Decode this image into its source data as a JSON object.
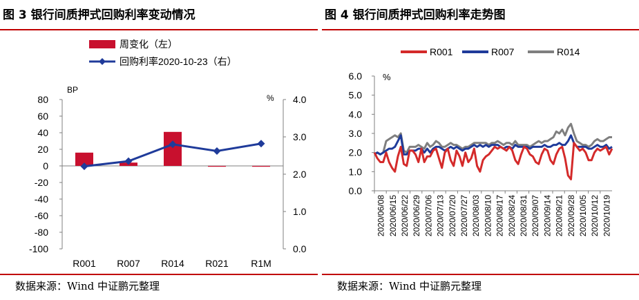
{
  "figure3": {
    "title": "图 3    银行间质押式回购利率变动情况",
    "source": "数据来源：Wind    中证鹏元整理",
    "chart_data": {
      "type": "bar+line",
      "categories": [
        "R001",
        "R007",
        "R014",
        "R021",
        "R1M"
      ],
      "series": [
        {
          "name": "周变化（左）",
          "kind": "bar",
          "axis": "left",
          "color": "#c8102e",
          "values": [
            16,
            4,
            41,
            -1,
            -1
          ]
        },
        {
          "name": "回购利率2020-10-23（右）",
          "kind": "line",
          "axis": "right",
          "color": "#1f3b9a",
          "values": [
            2.21,
            2.35,
            2.8,
            2.62,
            2.82
          ]
        }
      ],
      "left_axis": {
        "label": "BP",
        "ylim": [
          -100,
          80
        ],
        "ticks": [
          "80",
          "60",
          "40",
          "20",
          "0",
          "-20",
          "-40",
          "-60",
          "-80",
          "-100"
        ]
      },
      "right_axis": {
        "label": "%",
        "ylim": [
          0,
          4
        ],
        "ticks": [
          "4.0",
          "3.0",
          "2.0",
          "1.0",
          "0.0"
        ]
      }
    }
  },
  "figure4": {
    "title": "图 4    银行间质押式回购利率走势图",
    "source": "数据来源：Wind    中证鹏元整理",
    "chart_data": {
      "type": "line",
      "y_label": "%",
      "ylim": [
        0,
        6
      ],
      "y_ticks": [
        "6.0",
        "5.0",
        "4.0",
        "3.0",
        "2.0",
        "1.0",
        "0.0"
      ],
      "x_ticks": [
        "2020/06/08",
        "2020/06/15",
        "2020/06/22",
        "2020/06/29",
        "2020/07/06",
        "2020/07/13",
        "2020/07/20",
        "2020/07/27",
        "2020/08/03",
        "2020/08/10",
        "2020/08/17",
        "2020/08/24",
        "2020/08/31",
        "2020/09/07",
        "2020/09/14",
        "2020/09/21",
        "2020/09/28",
        "2020/10/05",
        "2020/10/12",
        "2020/10/19"
      ],
      "series": [
        {
          "name": "R001",
          "color": "#d42a2a",
          "values": [
            2.0,
            1.7,
            1.5,
            1.5,
            2.0,
            1.5,
            1.2,
            1.0,
            1.8,
            2.3,
            1.4,
            1.3,
            2.1,
            2.1,
            1.9,
            1.5,
            2.2,
            1.5,
            1.8,
            1.8,
            2.1,
            2.2,
            1.7,
            1.2,
            2.0,
            2.2,
            1.6,
            1.3,
            2.1,
            1.8,
            1.3,
            2.0,
            1.5,
            1.7,
            2.2,
            1.3,
            1.0,
            1.6,
            1.8,
            1.9,
            2.1,
            2.3,
            2.2,
            2.3,
            2.2,
            2.1,
            2.3,
            2.1,
            1.6,
            1.4,
            1.9,
            2.3,
            2.2,
            1.9,
            1.8,
            1.5,
            1.4,
            1.9,
            2.2,
            2.1,
            1.6,
            1.4,
            1.9,
            2.2,
            2.3,
            1.7,
            0.8,
            0.6,
            2.5,
            2.3,
            2.1,
            2.2,
            2.0,
            1.6,
            1.6,
            2.0,
            2.2,
            2.1,
            2.2,
            2.3,
            1.9,
            2.2
          ]
        },
        {
          "name": "R007",
          "color": "#1f3b9a",
          "values": [
            1.9,
            2.0,
            1.9,
            2.0,
            2.1,
            2.2,
            2.2,
            2.3,
            2.6,
            2.9,
            1.9,
            1.9,
            2.1,
            2.1,
            2.1,
            2.2,
            2.2,
            2.0,
            2.2,
            2.0,
            2.2,
            2.3,
            2.3,
            2.2,
            2.1,
            2.2,
            2.3,
            2.2,
            2.3,
            2.2,
            2.1,
            2.2,
            2.2,
            2.3,
            2.4,
            2.3,
            2.4,
            2.3,
            2.4,
            2.3,
            2.4,
            2.4,
            2.4,
            2.3,
            2.2,
            2.3,
            2.3,
            2.2,
            2.4,
            2.3,
            2.3,
            2.3,
            2.3,
            2.2,
            2.3,
            2.3,
            2.3,
            2.3,
            2.4,
            2.3,
            2.3,
            2.4,
            2.4,
            2.5,
            2.4,
            2.4,
            2.6,
            2.9,
            2.5,
            2.3,
            2.3,
            2.3,
            2.3,
            2.2,
            2.2,
            2.3,
            2.4,
            2.3,
            2.3,
            2.4,
            2.2,
            2.3
          ]
        },
        {
          "name": "R014",
          "color": "#7f7f7f",
          "values": [
            1.9,
            2.0,
            1.9,
            2.0,
            2.6,
            2.7,
            2.8,
            2.9,
            2.8,
            3.0,
            2.1,
            2.0,
            2.3,
            2.3,
            2.3,
            2.4,
            2.3,
            2.2,
            2.5,
            2.3,
            2.4,
            2.6,
            2.5,
            2.3,
            2.3,
            2.4,
            2.5,
            2.4,
            2.4,
            2.3,
            2.2,
            2.3,
            2.3,
            2.4,
            2.5,
            2.5,
            2.5,
            2.5,
            2.5,
            2.4,
            2.5,
            2.5,
            2.6,
            2.5,
            2.4,
            2.5,
            2.5,
            2.4,
            2.6,
            2.4,
            2.4,
            2.4,
            2.4,
            2.3,
            2.4,
            2.5,
            2.6,
            2.5,
            2.6,
            2.6,
            2.7,
            2.8,
            3.1,
            3.0,
            3.2,
            2.9,
            3.3,
            3.5,
            3.0,
            2.6,
            2.5,
            2.4,
            2.4,
            2.3,
            2.4,
            2.6,
            2.7,
            2.6,
            2.6,
            2.7,
            2.8,
            2.8
          ]
        }
      ]
    }
  }
}
